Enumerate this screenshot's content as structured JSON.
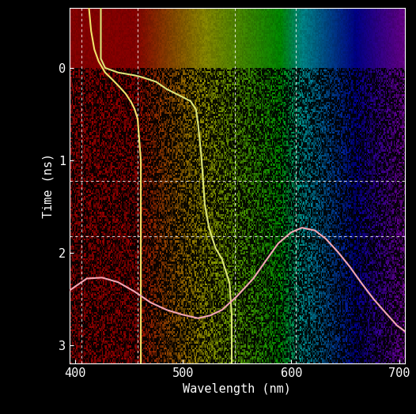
{
  "chart_data": {
    "type": "line",
    "x_label": "Wavelength (nm)",
    "y_label": "Time (ns)",
    "xlim": [
      395,
      705
    ],
    "ylim": [
      3.2,
      -0.65
    ],
    "xticks": [
      400,
      500,
      600,
      700
    ],
    "yticks": [
      0,
      1,
      2,
      3
    ],
    "grid": false,
    "reference_x": [
      406,
      458,
      548,
      604
    ],
    "reference_y": [
      1.22,
      1.82
    ],
    "series": [
      {
        "color": "#f2e46a",
        "x": [
          413,
          415,
          418,
          422,
          428,
          435,
          440,
          447,
          452,
          455,
          458,
          459,
          460,
          461,
          461,
          461,
          461,
          461
        ],
        "values": [
          -0.65,
          -0.4,
          -0.2,
          -0.07,
          0.05,
          0.13,
          0.19,
          0.28,
          0.37,
          0.44,
          0.55,
          0.7,
          0.85,
          1.0,
          1.5,
          2.0,
          2.5,
          3.2
        ]
      },
      {
        "color": "#dde67a",
        "x": [
          424,
          424,
          424,
          428,
          440,
          455,
          462,
          475,
          485,
          497,
          507,
          512,
          514,
          517,
          520,
          524,
          530,
          536,
          543,
          545,
          545
        ],
        "values": [
          -0.65,
          -0.3,
          -0.1,
          0.0,
          0.05,
          0.08,
          0.1,
          0.15,
          0.23,
          0.3,
          0.36,
          0.45,
          0.62,
          0.96,
          1.47,
          1.73,
          1.95,
          2.07,
          2.33,
          2.67,
          3.2
        ]
      },
      {
        "color": "#f3a6b4",
        "x": [
          395,
          411,
          425,
          440,
          455,
          470,
          485,
          499,
          514,
          525,
          536,
          550,
          565,
          577,
          588,
          600,
          610,
          622,
          632,
          643,
          654,
          665,
          676,
          688,
          698,
          705
        ],
        "values": [
          2.41,
          2.28,
          2.27,
          2.32,
          2.42,
          2.54,
          2.62,
          2.67,
          2.71,
          2.68,
          2.62,
          2.47,
          2.28,
          2.08,
          1.9,
          1.78,
          1.73,
          1.76,
          1.85,
          1.99,
          2.15,
          2.33,
          2.5,
          2.66,
          2.79,
          2.85
        ]
      }
    ]
  }
}
